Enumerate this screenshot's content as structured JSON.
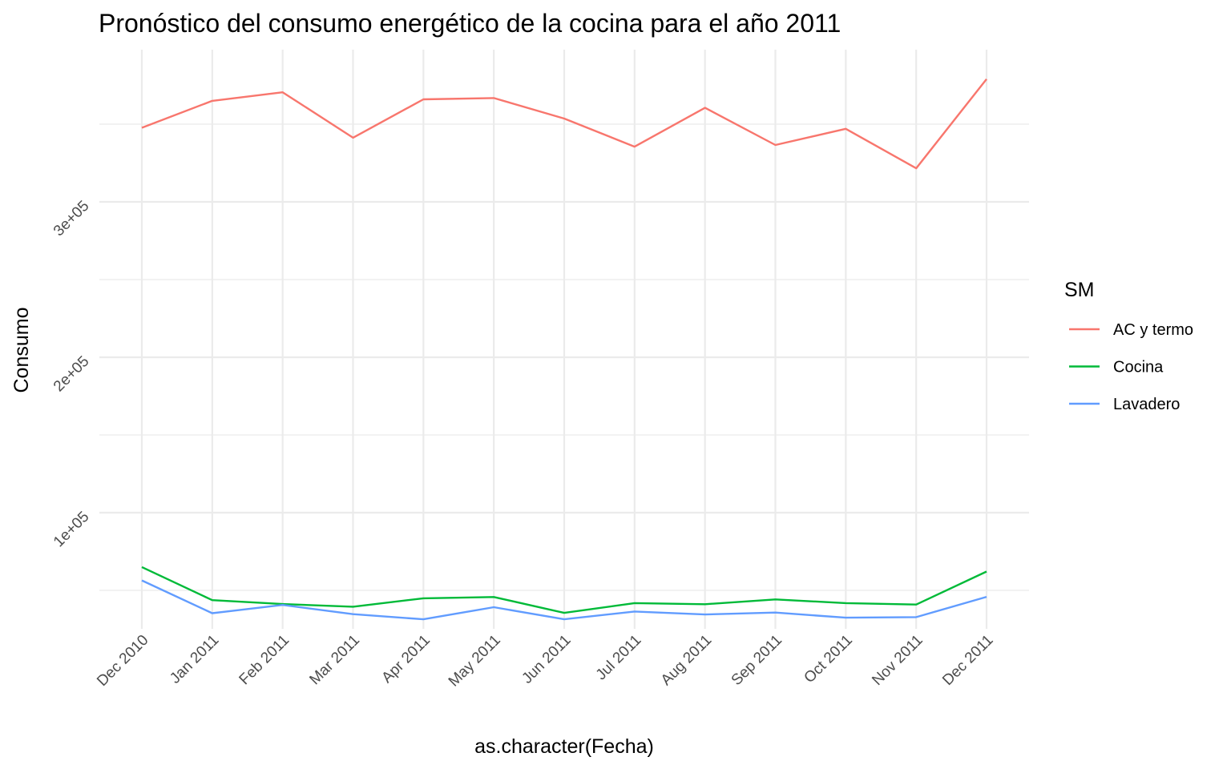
{
  "chart_data": {
    "type": "line",
    "title": "Pronóstico del consumo energético de la cocina para el año 2011",
    "xlabel": "as.character(Fecha)",
    "ylabel": "Consumo",
    "categories": [
      "Dec 2010",
      "Jan 2011",
      "Feb 2011",
      "Mar 2011",
      "Apr 2011",
      "May 2011",
      "Jun 2011",
      "Jul 2011",
      "Aug 2011",
      "Sep 2011",
      "Oct 2011",
      "Nov 2011",
      "Dec 2011"
    ],
    "y_ticks": [
      {
        "value": 100000,
        "label": "1e+05"
      },
      {
        "value": 200000,
        "label": "2e+05"
      },
      {
        "value": 300000,
        "label": "3e+05"
      }
    ],
    "ylim": [
      27000,
      387000
    ],
    "grid": true,
    "legend": {
      "title": "SM",
      "position": "right"
    },
    "series": [
      {
        "name": "AC y termo",
        "color": "#F8766D",
        "values": [
          347700,
          365000,
          370500,
          341300,
          366000,
          366800,
          353600,
          335500,
          360500,
          336600,
          347000,
          321600,
          379000
        ]
      },
      {
        "name": "Cocina",
        "color": "#00BA38",
        "values": [
          65000,
          43700,
          41200,
          39500,
          44900,
          45700,
          35500,
          41800,
          41100,
          44200,
          41800,
          40900,
          62100
        ]
      },
      {
        "name": "Lavadero",
        "color": "#619CFF",
        "values": [
          56400,
          35300,
          40600,
          34700,
          31400,
          39200,
          31400,
          36400,
          34500,
          35700,
          32400,
          32800,
          45800
        ]
      }
    ]
  }
}
